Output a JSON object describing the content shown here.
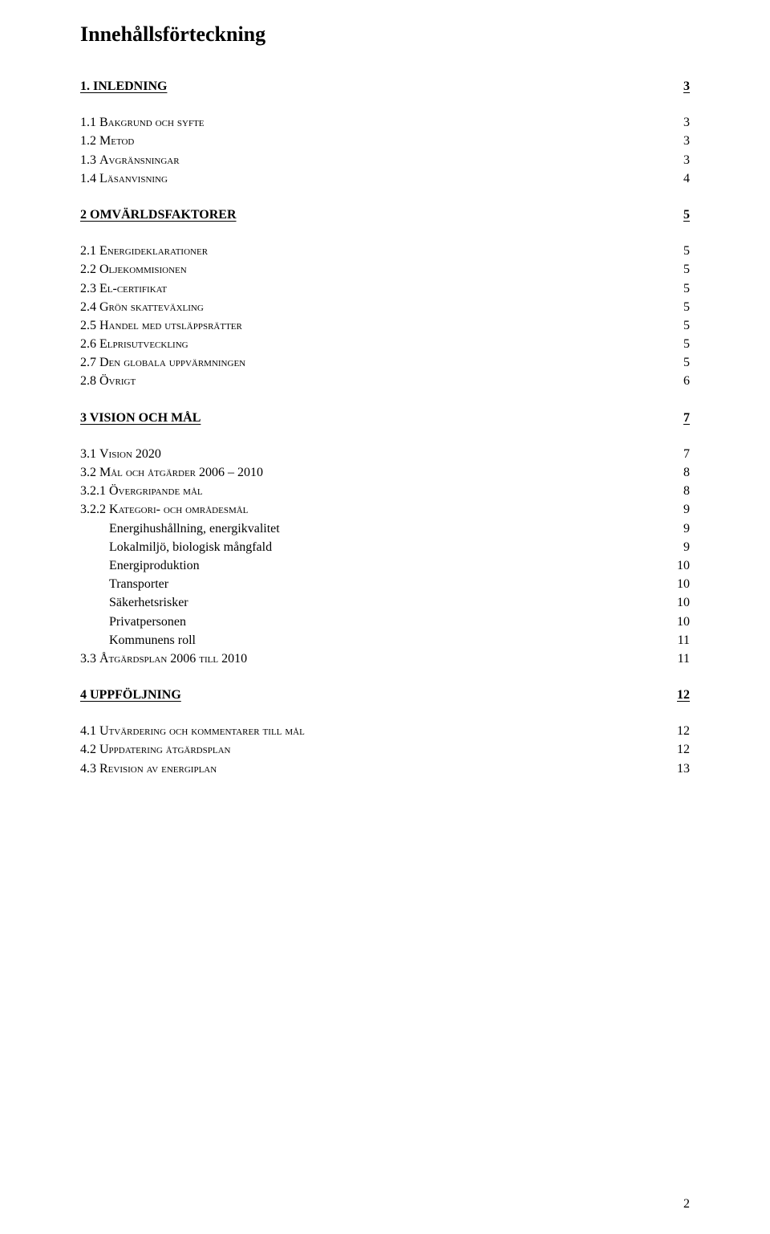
{
  "title": "Innehållsförteckning",
  "page_number": "2",
  "sections": [
    {
      "type": "section",
      "label": "1. INLEDNING",
      "page": "3",
      "children": [
        {
          "type": "sub",
          "num": "1.1 ",
          "txt": "Bakgrund och syfte",
          "page": "3"
        },
        {
          "type": "sub",
          "num": "1.2 ",
          "txt": "Metod",
          "page": "3"
        },
        {
          "type": "sub",
          "num": "1.3 ",
          "txt": "Avgränsningar",
          "page": "3"
        },
        {
          "type": "sub",
          "num": "1.4 ",
          "txt": "Läsanvisning",
          "page": "4"
        }
      ]
    },
    {
      "type": "section",
      "label": "2 OMVÄRLDSFAKTORER",
      "page": "5",
      "children": [
        {
          "type": "sub",
          "num": "2.1 ",
          "txt": "Energideklarationer",
          "page": "5"
        },
        {
          "type": "sub",
          "num": "2.2 ",
          "txt": "Oljekommisionen",
          "page": "5"
        },
        {
          "type": "sub",
          "num": "2.3 ",
          "txt": "El-certifikat",
          "page": "5"
        },
        {
          "type": "sub",
          "num": "2.4 ",
          "txt": "Grön skatteväxling",
          "page": "5"
        },
        {
          "type": "sub",
          "num": "2.5 ",
          "txt": "Handel med utsläppsrätter",
          "page": "5"
        },
        {
          "type": "sub",
          "num": "2.6 ",
          "txt": "Elprisutveckling",
          "page": "5"
        },
        {
          "type": "sub",
          "num": "2.7 ",
          "txt": "Den globala uppvärmningen",
          "page": "5"
        },
        {
          "type": "sub",
          "num": "2.8 ",
          "txt": "Övrigt",
          "page": "6"
        }
      ]
    },
    {
      "type": "section",
      "label": "3 VISION OCH MÅL",
      "page": "7",
      "children": [
        {
          "type": "sub",
          "num": "3.1 ",
          "txt": "Vision 2020",
          "page": "7"
        },
        {
          "type": "sub",
          "num": "3.2 ",
          "txt": "Mål och åtgärder 2006 – 2010",
          "page": "8"
        },
        {
          "type": "subsub",
          "num": "3.2.1  ",
          "txt": "Övergripande mål",
          "page": "8"
        },
        {
          "type": "subsub",
          "num": "3.2.2  ",
          "txt": "Kategori- och områdesmål",
          "page": "9"
        },
        {
          "type": "plain",
          "label": "Energihushållning, energikvalitet",
          "page": "9"
        },
        {
          "type": "plain",
          "label": "Lokalmiljö, biologisk mångfald",
          "page": "9"
        },
        {
          "type": "plain",
          "label": "Energiproduktion",
          "page": "10"
        },
        {
          "type": "plain",
          "label": "Transporter",
          "page": "10"
        },
        {
          "type": "plain",
          "label": "Säkerhetsrisker",
          "page": "10"
        },
        {
          "type": "plain",
          "label": "Privatpersonen",
          "page": "10"
        },
        {
          "type": "plain",
          "label": "Kommunens roll",
          "page": "11"
        },
        {
          "type": "sub",
          "num": "3.3 ",
          "txt": "Åtgärdsplan 2006 till 2010",
          "page": "11"
        }
      ]
    },
    {
      "type": "section",
      "label": "4 UPPFÖLJNING",
      "page": "12",
      "children": [
        {
          "type": "sub",
          "num": "4.1 ",
          "txt": "Utvärdering och kommentarer till mål",
          "page": "12"
        },
        {
          "type": "sub",
          "num": "4.2 ",
          "txt": "Uppdatering åtgärdsplan",
          "page": "12"
        },
        {
          "type": "sub",
          "num": "4.3 ",
          "txt": "Revision av energiplan",
          "page": "13"
        }
      ]
    }
  ]
}
